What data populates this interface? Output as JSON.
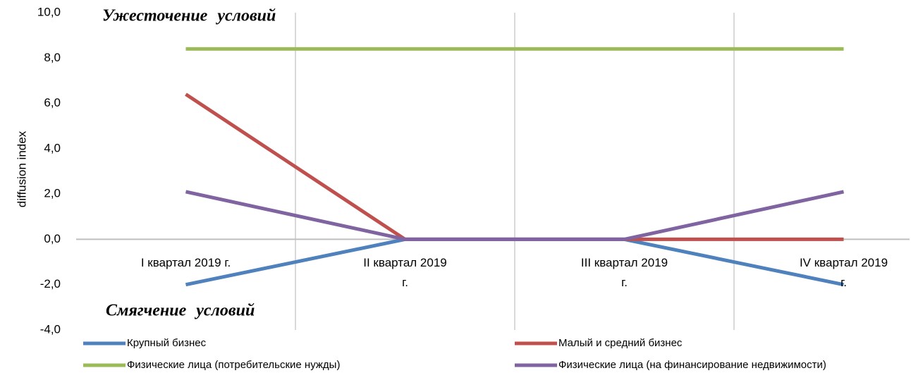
{
  "chart_data": {
    "type": "line",
    "y_label": "diffusion index",
    "annotations": [
      "Ужесточение условий",
      "Смягчение условий"
    ],
    "categories": [
      "I квартал 2019 г.",
      "II квартал 2019 г.",
      "III квартал 2019 г.",
      "IV квартал 2019 г."
    ],
    "series": [
      {
        "name": "Крупный бизнес",
        "color": "#4f81bd",
        "values": [
          -2.0,
          0,
          0,
          -2.0
        ]
      },
      {
        "name": "Малый и средний бизнес",
        "color": "#c0504d",
        "values": [
          6.4,
          0,
          0,
          0
        ]
      },
      {
        "name": "Физические лица (потребительские нужды)",
        "color": "#9bbb59",
        "values": [
          8.4,
          8.4,
          8.4,
          8.4
        ]
      },
      {
        "name": "Физические лица (на финансирование недвижимости)",
        "color": "#8064a2",
        "values": [
          2.1,
          0,
          0,
          2.1
        ]
      }
    ],
    "ylim": [
      -4,
      10
    ],
    "yticks": [
      {
        "value": -4,
        "label": "-4,0"
      },
      {
        "value": -2,
        "label": "-2,0"
      },
      {
        "value": 0,
        "label": "0,0"
      },
      {
        "value": 2,
        "label": "2,0"
      },
      {
        "value": 4,
        "label": "4,0"
      },
      {
        "value": 6,
        "label": "6,0"
      },
      {
        "value": 8,
        "label": "8,0"
      },
      {
        "value": 10,
        "label": "10,0"
      }
    ],
    "legend": "bottom"
  }
}
